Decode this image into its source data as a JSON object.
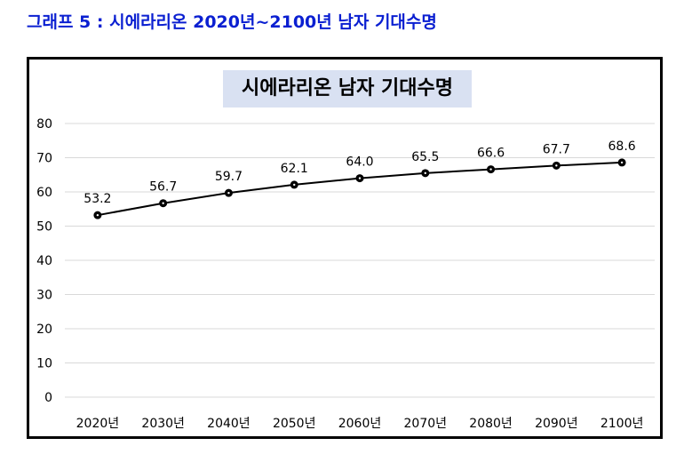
{
  "caption": "그래프 5 : 시에라리온 2020년~2100년 남자 기대수명",
  "colors": {
    "caption": "#0a1fd1",
    "title_bg": "#d9e1f2",
    "line": "#000000",
    "grid": "#d9d9d9"
  },
  "chart_data": {
    "type": "line",
    "title": "시에라리온 남자 기대수명",
    "categories": [
      "2020년",
      "2030년",
      "2040년",
      "2050년",
      "2060년",
      "2070년",
      "2080년",
      "2090년",
      "2100년"
    ],
    "series": [
      {
        "values": [
          53.2,
          56.7,
          59.7,
          62.1,
          64.0,
          65.5,
          66.6,
          67.7,
          68.6
        ],
        "labels": [
          "53.2",
          "56.7",
          "59.7",
          "62.1",
          "64.0",
          "65.5",
          "66.6",
          "67.7",
          "68.6"
        ]
      }
    ],
    "yticks": [
      "0",
      "10",
      "20",
      "30",
      "40",
      "50",
      "60",
      "70",
      "80"
    ],
    "ylim": [
      0,
      80
    ],
    "grid": true,
    "legend": "none",
    "data_labels": true
  }
}
